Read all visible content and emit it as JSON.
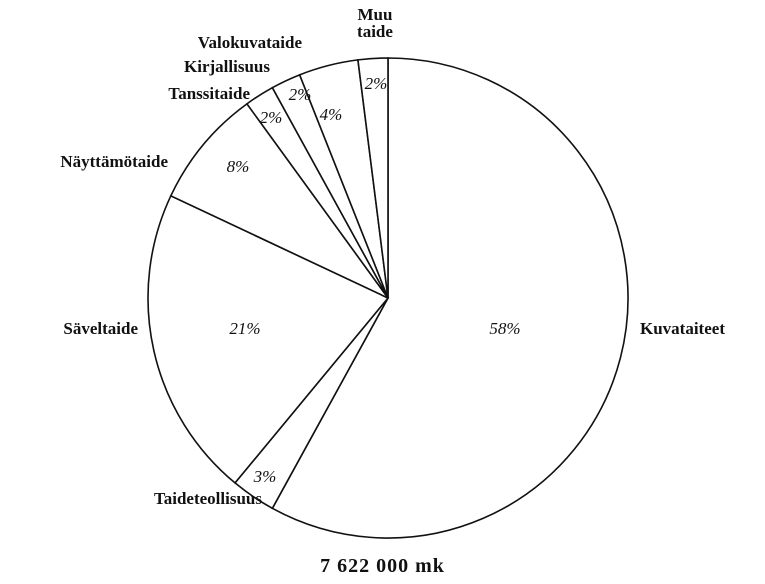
{
  "chart_data": {
    "type": "pie",
    "subtitle": "7 622 000 mk",
    "categories": [
      "Kuvataiteet",
      "Taideteollisuus",
      "Säveltaide",
      "Näyttämötaide",
      "Tanssitaide",
      "Kirjallisuus",
      "Valokuvataide",
      "Muu taide"
    ],
    "values": [
      58,
      3,
      21,
      8,
      2,
      2,
      4,
      2
    ],
    "value_labels": [
      "58%",
      "3%",
      "21%",
      "8%",
      "2%",
      "2%",
      "4%",
      "2%"
    ],
    "color": "#ffffff"
  }
}
